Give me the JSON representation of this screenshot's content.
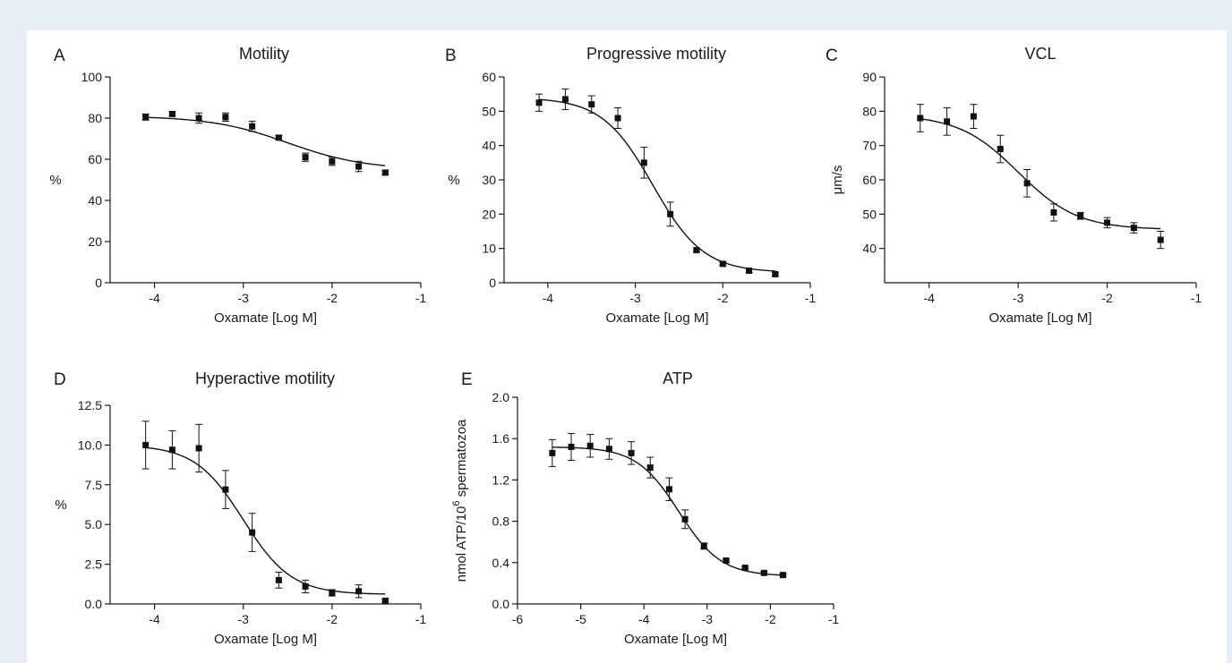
{
  "chart_data": [
    {
      "type": "scatter",
      "letter": "A",
      "title": "Motility",
      "xlabel": "Oxamate [Log M]",
      "ylabel": "%",
      "xlim": [
        -4.5,
        -1
      ],
      "ylim": [
        0,
        100
      ],
      "xticks": [
        -4,
        -3,
        -2,
        -1
      ],
      "yticks": [
        0,
        20,
        40,
        60,
        80,
        100
      ],
      "ytick_labels": [
        "0",
        "20",
        "40",
        "60",
        "80",
        "100"
      ],
      "x": [
        -4.1,
        -3.8,
        -3.5,
        -3.2,
        -2.9,
        -2.6,
        -2.3,
        -2.0,
        -1.7,
        -1.4
      ],
      "y": [
        80.5,
        82,
        80,
        80.5,
        76,
        70.5,
        61,
        59,
        56.5,
        53.5
      ],
      "yerr": [
        1.5,
        1,
        2.5,
        2,
        2.5,
        1,
        2,
        2,
        2.5,
        1
      ],
      "fit": {
        "top": 81,
        "bottom": 55,
        "logEC50": -2.5,
        "hill": 1
      }
    },
    {
      "type": "scatter",
      "letter": "B",
      "title": "Progressive motility",
      "xlabel": "Oxamate [Log M]",
      "ylabel": "%",
      "xlim": [
        -4.5,
        -1
      ],
      "ylim": [
        0,
        60
      ],
      "xticks": [
        -4,
        -3,
        -2,
        -1
      ],
      "yticks": [
        0,
        10,
        20,
        30,
        40,
        50,
        60
      ],
      "ytick_labels": [
        "0",
        "10",
        "20",
        "30",
        "40",
        "50",
        "60"
      ],
      "x": [
        -4.1,
        -3.8,
        -3.5,
        -3.2,
        -2.9,
        -2.6,
        -2.3,
        -2.0,
        -1.7,
        -1.4
      ],
      "y": [
        52.5,
        53.5,
        52,
        48,
        35,
        20,
        9.5,
        5.5,
        3.5,
        2.5
      ],
      "yerr": [
        2.5,
        3,
        2.5,
        3,
        4.5,
        3.5,
        0.5,
        0.5,
        0.5,
        0.5
      ],
      "fit": {
        "top": 54,
        "bottom": 3,
        "logEC50": -2.8,
        "hill": 1.5
      }
    },
    {
      "type": "scatter",
      "letter": "C",
      "title": "VCL",
      "xlabel": "Oxamate [Log M]",
      "ylabel": "μm/s",
      "xlim": [
        -4.5,
        -1
      ],
      "ylim": [
        30,
        90
      ],
      "xticks": [
        -4,
        -3,
        -2,
        -1
      ],
      "yticks": [
        40,
        50,
        60,
        70,
        80,
        90
      ],
      "ytick_labels": [
        "40",
        "50",
        "60",
        "70",
        "80",
        "90"
      ],
      "x": [
        -4.1,
        -3.8,
        -3.5,
        -3.2,
        -2.9,
        -2.6,
        -2.3,
        -2.0,
        -1.7,
        -1.4
      ],
      "y": [
        78,
        77,
        78.5,
        69,
        59,
        50.5,
        49.5,
        47.5,
        46,
        42.5
      ],
      "yerr": [
        4,
        4,
        3.5,
        4,
        4,
        2.5,
        1,
        1.5,
        1.5,
        2.5
      ],
      "fit": {
        "top": 79,
        "bottom": 45.5,
        "logEC50": -3.0,
        "hill": 1.3
      }
    },
    {
      "type": "scatter",
      "letter": "D",
      "title": "Hyperactive motility",
      "xlabel": "Oxamate [Log M]",
      "ylabel": "%",
      "xlim": [
        -4.5,
        -1
      ],
      "ylim": [
        0,
        12.5
      ],
      "xticks": [
        -4,
        -3,
        -2,
        -1
      ],
      "yticks": [
        0,
        2.5,
        5,
        7.5,
        10,
        12.5
      ],
      "ytick_labels": [
        "0.0",
        "2.5",
        "5.0",
        "7.5",
        "10.0",
        "12.5"
      ],
      "x": [
        -4.1,
        -3.8,
        -3.5,
        -3.2,
        -2.9,
        -2.6,
        -2.3,
        -2.0,
        -1.7,
        -1.4
      ],
      "y": [
        10,
        9.7,
        9.8,
        7.2,
        4.5,
        1.5,
        1.1,
        0.7,
        0.8,
        0.2
      ],
      "yerr": [
        1.5,
        1.2,
        1.5,
        1.2,
        1.2,
        0.5,
        0.4,
        0.2,
        0.4,
        0.1
      ],
      "fit": {
        "top": 10,
        "bottom": 0.6,
        "logEC50": -3.0,
        "hill": 1.6
      }
    },
    {
      "type": "scatter",
      "letter": "E",
      "title": "ATP",
      "xlabel": "Oxamate [Log M]",
      "ylabel": "nmol ATP/10",
      "ylabel_sup": "6",
      "ylabel_tail": " spermatozoa",
      "xlim": [
        -6,
        -1
      ],
      "ylim": [
        0,
        2
      ],
      "xticks": [
        -6,
        -5,
        -4,
        -3,
        -2,
        -1
      ],
      "yticks": [
        0,
        0.4,
        0.8,
        1.2,
        1.6,
        2.0
      ],
      "ytick_labels": [
        "0.0",
        "0.4",
        "0.8",
        "1.2",
        "1.6",
        "2.0"
      ],
      "x": [
        -5.45,
        -5.15,
        -4.85,
        -4.55,
        -4.2,
        -3.9,
        -3.6,
        -3.35,
        -3.05,
        -2.7,
        -2.4,
        -2.1,
        -1.8
      ],
      "y": [
        1.46,
        1.52,
        1.53,
        1.5,
        1.46,
        1.32,
        1.11,
        0.82,
        0.56,
        0.42,
        0.35,
        0.3,
        0.28
      ],
      "yerr": [
        0.13,
        0.13,
        0.11,
        0.1,
        0.11,
        0.1,
        0.11,
        0.09,
        0.03,
        0.01,
        0.01,
        0.01,
        0.01
      ],
      "fit": {
        "top": 1.52,
        "bottom": 0.27,
        "logEC50": -3.45,
        "hill": 1.3
      }
    }
  ]
}
